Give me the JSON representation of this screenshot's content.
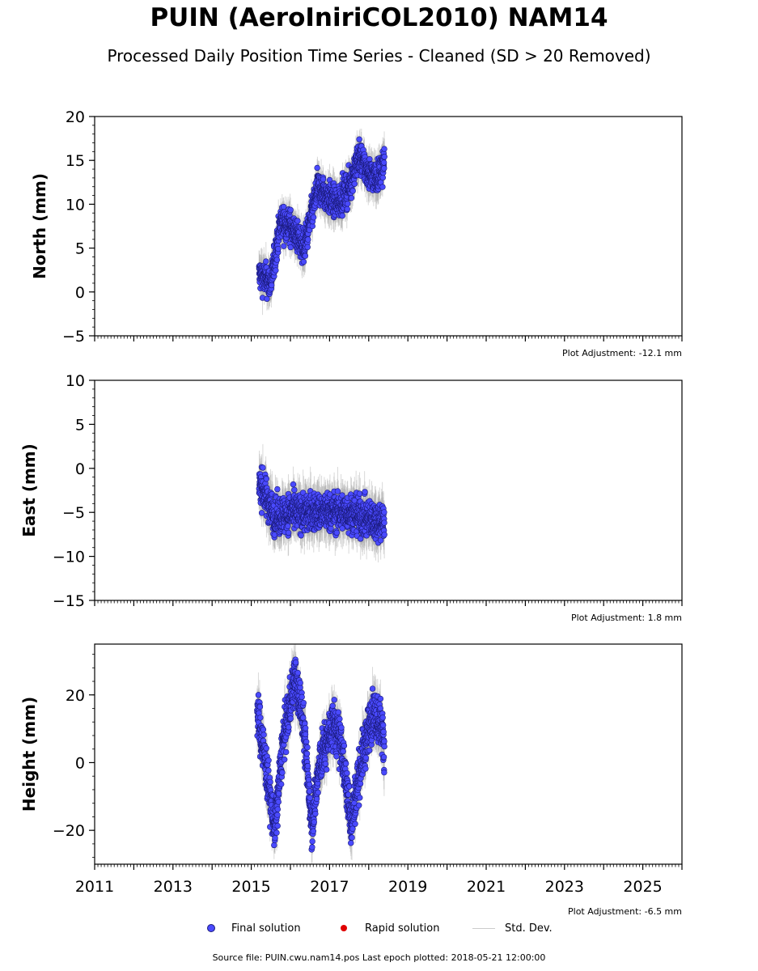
{
  "title": "PUIN (AeroIniriCOL2010) NAM14",
  "subtitle": "Processed Daily Position Time Series - Cleaned (SD > 20 Removed)",
  "footer": "Source file: PUIN.cwu.nam14.pos  Last epoch plotted: 2018-05-21 12:00:00",
  "legend": {
    "final": "Final solution",
    "rapid": "Rapid solution",
    "std": "Std. Dev."
  },
  "colors": {
    "final_fill": "#4a4aff",
    "final_edge": "#1a1a7a",
    "rapid": "#e00000",
    "std_dev": "#aaaaaa"
  },
  "chart_data": [
    {
      "type": "scatter",
      "ylabel": "North (mm)",
      "ylim": [
        -5,
        20
      ],
      "yticks": [
        -5,
        0,
        5,
        10,
        15,
        20
      ],
      "xlim": [
        2011,
        2026
      ],
      "adjustment": "Plot Adjustment: -12.1 mm",
      "trend": [
        [
          2015.2,
          2.0
        ],
        [
          2015.5,
          1.0
        ],
        [
          2015.75,
          8.0
        ],
        [
          2016.0,
          7.5
        ],
        [
          2016.35,
          5.0
        ],
        [
          2016.7,
          12.0
        ],
        [
          2016.9,
          11.0
        ],
        [
          2017.2,
          10.0
        ],
        [
          2017.5,
          12.0
        ],
        [
          2017.75,
          15.5
        ],
        [
          2018.0,
          13.5
        ],
        [
          2018.2,
          13.0
        ],
        [
          2018.4,
          14.5
        ]
      ],
      "spread": 1.3,
      "err": 1.6
    },
    {
      "type": "scatter",
      "ylabel": "East (mm)",
      "ylim": [
        -15,
        10
      ],
      "yticks": [
        -15,
        -10,
        -5,
        0,
        5,
        10
      ],
      "xlim": [
        2011,
        2026
      ],
      "adjustment": "Plot Adjustment: 1.8 mm",
      "trend": [
        [
          2015.2,
          -1.5
        ],
        [
          2015.4,
          -3.5
        ],
        [
          2015.6,
          -5.5
        ],
        [
          2016.0,
          -5.0
        ],
        [
          2016.5,
          -5.0
        ],
        [
          2017.0,
          -5.0
        ],
        [
          2017.5,
          -5.0
        ],
        [
          2018.0,
          -5.8
        ],
        [
          2018.4,
          -6.0
        ]
      ],
      "spread": 1.5,
      "err": 2.0
    },
    {
      "type": "scatter",
      "ylabel": "Height (mm)",
      "ylim": [
        -30,
        35
      ],
      "yticks": [
        -20,
        0,
        20
      ],
      "xlim": [
        2011,
        2026
      ],
      "xticks": [
        2011,
        2013,
        2015,
        2017,
        2019,
        2021,
        2023,
        2025
      ],
      "adjustment": "Plot Adjustment: -6.5 mm",
      "trend": [
        [
          2015.15,
          15.0
        ],
        [
          2015.3,
          5.0
        ],
        [
          2015.6,
          -20.0
        ],
        [
          2015.8,
          5.0
        ],
        [
          2016.1,
          25.0
        ],
        [
          2016.3,
          15.0
        ],
        [
          2016.55,
          -18.0
        ],
        [
          2016.75,
          0.0
        ],
        [
          2017.1,
          12.0
        ],
        [
          2017.3,
          5.0
        ],
        [
          2017.55,
          -18.0
        ],
        [
          2017.8,
          0.0
        ],
        [
          2018.1,
          15.0
        ],
        [
          2018.3,
          12.0
        ],
        [
          2018.4,
          5.0
        ]
      ],
      "spread": 5.0,
      "err": 5.0
    }
  ]
}
